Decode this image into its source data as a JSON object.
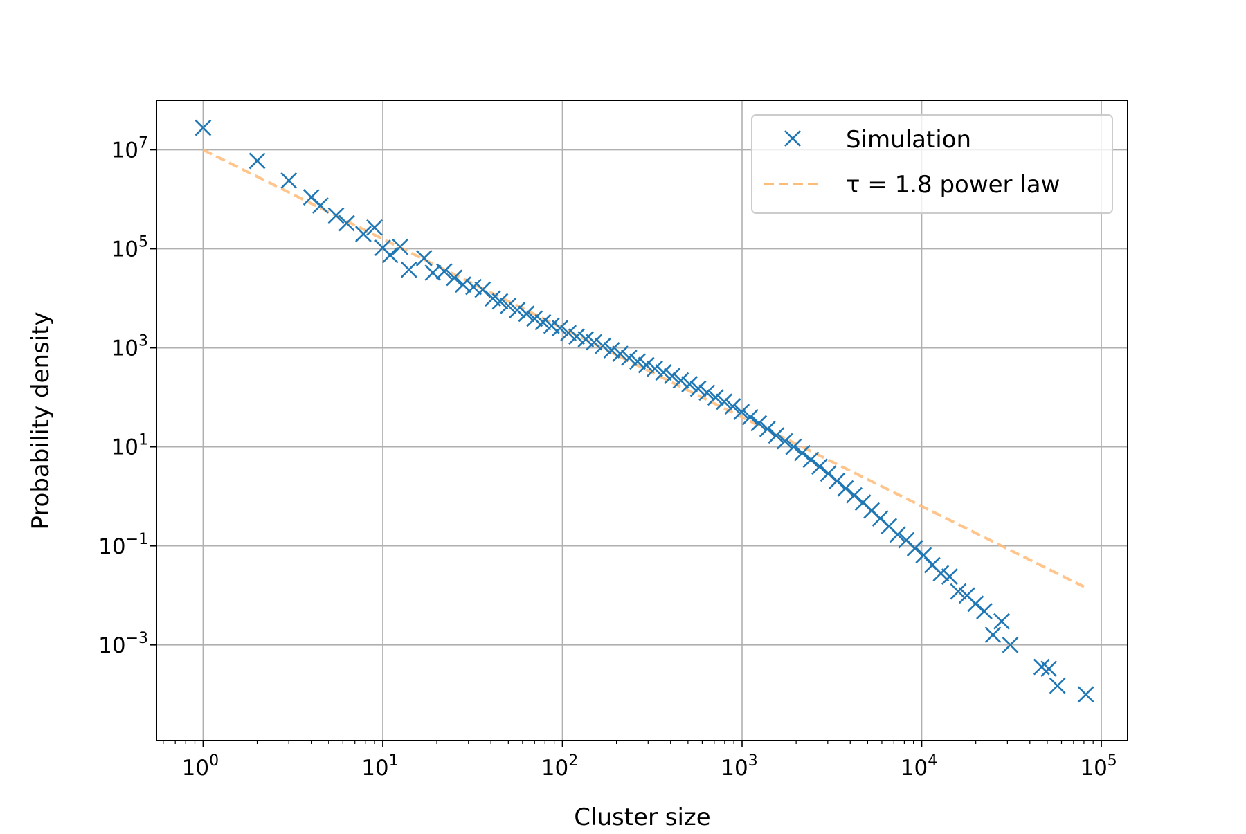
{
  "chart_data": {
    "type": "scatter",
    "title": "",
    "xlabel": "Cluster size",
    "ylabel": "Probability density",
    "xscale": "log",
    "yscale": "log",
    "xlim": [
      0.55,
      140000
    ],
    "ylim": [
      1.17e-05,
      100000000
    ],
    "grid": true,
    "legend_position": "top-right",
    "x_ticks": [
      {
        "base": "10",
        "exp": "0",
        "value": 1
      },
      {
        "base": "10",
        "exp": "1",
        "value": 10
      },
      {
        "base": "10",
        "exp": "2",
        "value": 100
      },
      {
        "base": "10",
        "exp": "3",
        "value": 1000
      },
      {
        "base": "10",
        "exp": "4",
        "value": 10000
      },
      {
        "base": "10",
        "exp": "5",
        "value": 100000
      }
    ],
    "y_ticks": [
      {
        "base": "10",
        "exp": "7",
        "value": 10000000
      },
      {
        "base": "10",
        "exp": "5",
        "value": 100000
      },
      {
        "base": "10",
        "exp": "3",
        "value": 1000
      },
      {
        "base": "10",
        "exp": "1",
        "value": 10
      },
      {
        "base": "10",
        "exp": "−1",
        "value": 0.1
      },
      {
        "base": "10",
        "exp": "−3",
        "value": 0.001
      }
    ],
    "series": [
      {
        "name": "Simulation",
        "marker": "x",
        "color": "#1f77b4",
        "points": [
          [
            1,
            28000000
          ],
          [
            2,
            6000000
          ],
          [
            3,
            2400000
          ],
          [
            4,
            1100000
          ],
          [
            4.5,
            750000
          ],
          [
            5.5,
            470000
          ],
          [
            6.3,
            330000
          ],
          [
            7.8,
            200000
          ],
          [
            9,
            270000
          ],
          [
            10,
            105000
          ],
          [
            11,
            75000
          ],
          [
            12.5,
            110000
          ],
          [
            14,
            38000
          ],
          [
            17,
            65000
          ],
          [
            19,
            33000
          ],
          [
            22,
            35000
          ],
          [
            25,
            26000
          ],
          [
            28,
            19000
          ],
          [
            32,
            17000
          ],
          [
            36,
            15000
          ],
          [
            41,
            10000
          ],
          [
            45,
            8700
          ],
          [
            50,
            7100
          ],
          [
            56,
            5800
          ],
          [
            63,
            4900
          ],
          [
            70,
            3900
          ],
          [
            78,
            3300
          ],
          [
            87,
            2800
          ],
          [
            97,
            2500
          ],
          [
            108,
            2000
          ],
          [
            120,
            1700
          ],
          [
            135,
            1500
          ],
          [
            150,
            1300
          ],
          [
            168,
            1100
          ],
          [
            188,
            900
          ],
          [
            210,
            760
          ],
          [
            235,
            630
          ],
          [
            262,
            530
          ],
          [
            293,
            450
          ],
          [
            327,
            380
          ],
          [
            365,
            320
          ],
          [
            408,
            270
          ],
          [
            456,
            220
          ],
          [
            510,
            185
          ],
          [
            570,
            150
          ],
          [
            637,
            125
          ],
          [
            712,
            100
          ],
          [
            795,
            82
          ],
          [
            888,
            66
          ],
          [
            993,
            51
          ],
          [
            1110,
            40
          ],
          [
            1240,
            30
          ],
          [
            1386,
            23
          ],
          [
            1549,
            17
          ],
          [
            1731,
            13
          ],
          [
            1934,
            10
          ],
          [
            2162,
            7.5
          ],
          [
            2416,
            5.5
          ],
          [
            2700,
            4
          ],
          [
            3017,
            2.9
          ],
          [
            3372,
            2.05
          ],
          [
            3768,
            1.45
          ],
          [
            4211,
            1.05
          ],
          [
            4706,
            0.75
          ],
          [
            5259,
            0.52
          ],
          [
            5877,
            0.36
          ],
          [
            6568,
            0.25
          ],
          [
            7340,
            0.17
          ],
          [
            8203,
            0.13
          ],
          [
            9167,
            0.09
          ],
          [
            10245,
            0.065
          ],
          [
            11449,
            0.041
          ],
          [
            12795,
            0.028
          ],
          [
            14299,
            0.024
          ],
          [
            15979,
            0.012
          ],
          [
            17858,
            0.01
          ],
          [
            19957,
            0.0068
          ],
          [
            22303,
            0.0048
          ],
          [
            24925,
            0.0016
          ],
          [
            27855,
            0.003
          ],
          [
            31128,
            0.001
          ],
          [
            46500,
            0.00036
          ],
          [
            51000,
            0.00033
          ],
          [
            57000,
            0.00015
          ],
          [
            82000,
            0.0001
          ]
        ]
      },
      {
        "name": "τ = 1.8 power law",
        "style": "dashed",
        "color": "#ffbb78",
        "points": [
          [
            1,
            10000000
          ],
          [
            80000,
            0.015
          ]
        ]
      }
    ]
  }
}
